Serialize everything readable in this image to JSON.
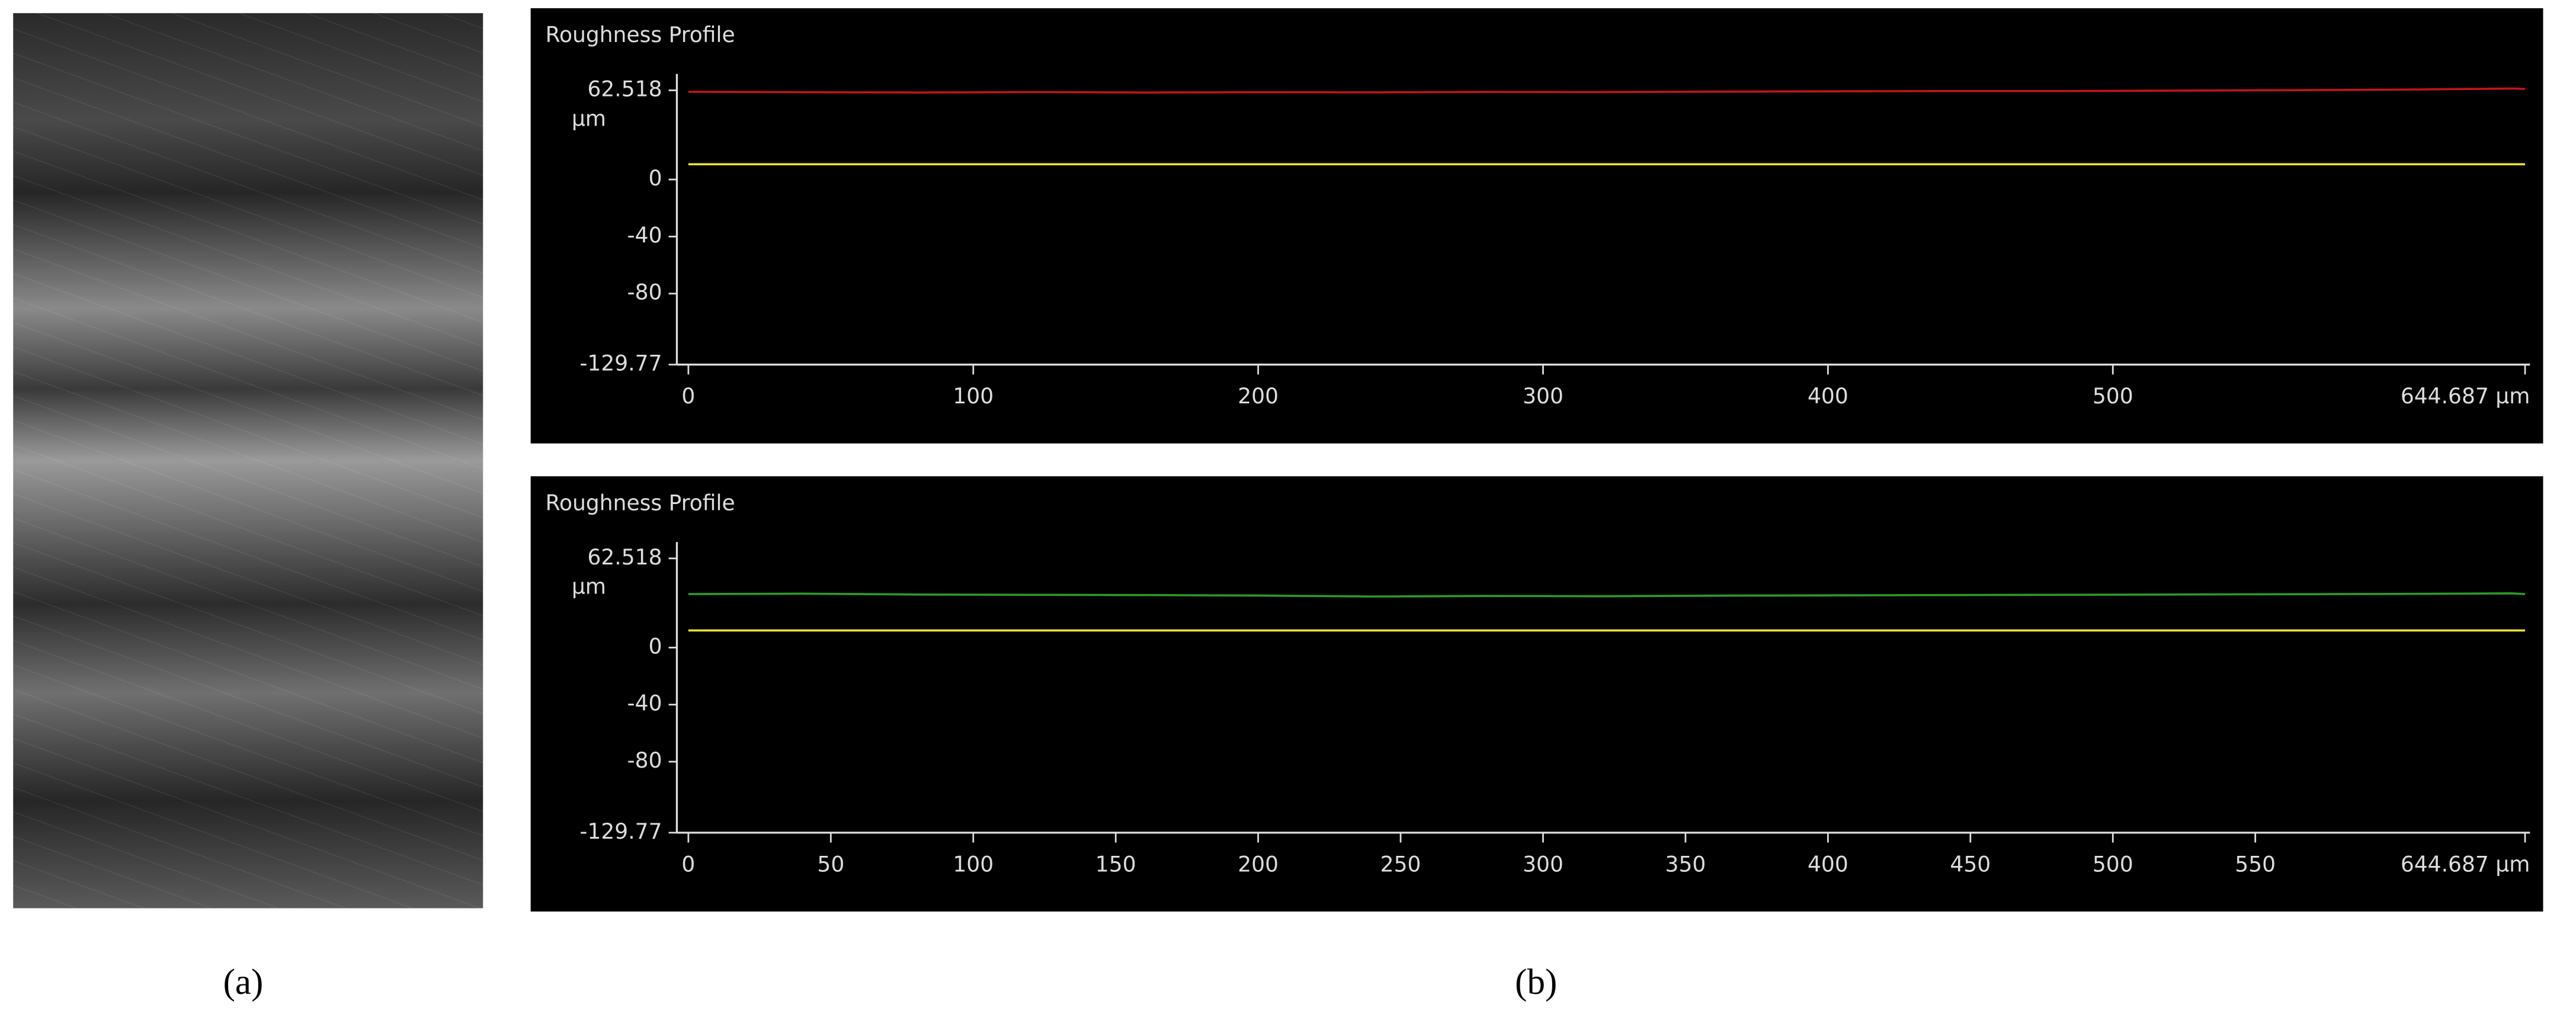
{
  "panel_a": {
    "caption": "(a)"
  },
  "panel_b": {
    "caption": "(b)"
  },
  "chart_data": [
    {
      "type": "line",
      "title": "Roughness Profile",
      "y_unit": "µm",
      "x": [
        0,
        40,
        80,
        120,
        160,
        200,
        240,
        280,
        320,
        360,
        400,
        440,
        480,
        520,
        560,
        600,
        640,
        644.687
      ],
      "series": [
        {
          "color": "#c0161b",
          "values": [
            61.5,
            61.2,
            61.0,
            61.3,
            61.0,
            61.2,
            61.1,
            61.4,
            61.3,
            61.6,
            61.8,
            62.0,
            62.0,
            62.3,
            62.6,
            63.0,
            63.8,
            63.5
          ]
        },
        {
          "color": "#e8e337",
          "values": [
            10.7,
            10.7,
            10.7,
            10.7,
            10.7,
            10.7,
            10.7,
            10.7,
            10.7,
            10.7,
            10.7,
            10.7,
            10.7,
            10.7,
            10.7,
            10.7,
            10.7,
            10.7
          ]
        }
      ],
      "xlim": [
        0,
        644.687
      ],
      "xticks": [
        0,
        100,
        200,
        300,
        400,
        500,
        {
          "value": 644.687,
          "label": "644.687 µm"
        }
      ],
      "ylim": [
        -129.77,
        62.518
      ],
      "yticks": [
        -129.77,
        -80,
        -40,
        0,
        62.518
      ],
      "grid": false
    },
    {
      "type": "line",
      "title": "Roughness Profile",
      "y_unit": "µm",
      "x": [
        0,
        40,
        80,
        120,
        160,
        200,
        240,
        280,
        320,
        360,
        400,
        440,
        480,
        520,
        560,
        600,
        640,
        644.687
      ],
      "series": [
        {
          "color": "#2e9a2a",
          "values": [
            37.5,
            37.8,
            37.2,
            37.0,
            36.8,
            36.5,
            35.8,
            36.2,
            36.0,
            36.4,
            36.6,
            36.8,
            37.0,
            37.2,
            37.4,
            37.6,
            38.0,
            37.5
          ]
        },
        {
          "color": "#e8e337",
          "values": [
            12,
            12,
            12,
            12,
            12,
            12,
            12,
            12,
            12,
            12,
            12,
            12,
            12,
            12,
            12,
            12,
            12,
            12
          ]
        }
      ],
      "xlim": [
        0,
        644.687
      ],
      "xticks": [
        0,
        50,
        100,
        150,
        200,
        250,
        300,
        350,
        400,
        450,
        500,
        550,
        {
          "value": 644.687,
          "label": "644.687 µm"
        }
      ],
      "ylim": [
        -129.77,
        62.518
      ],
      "yticks": [
        -129.77,
        -80,
        -40,
        0,
        62.518
      ],
      "grid": false
    }
  ]
}
